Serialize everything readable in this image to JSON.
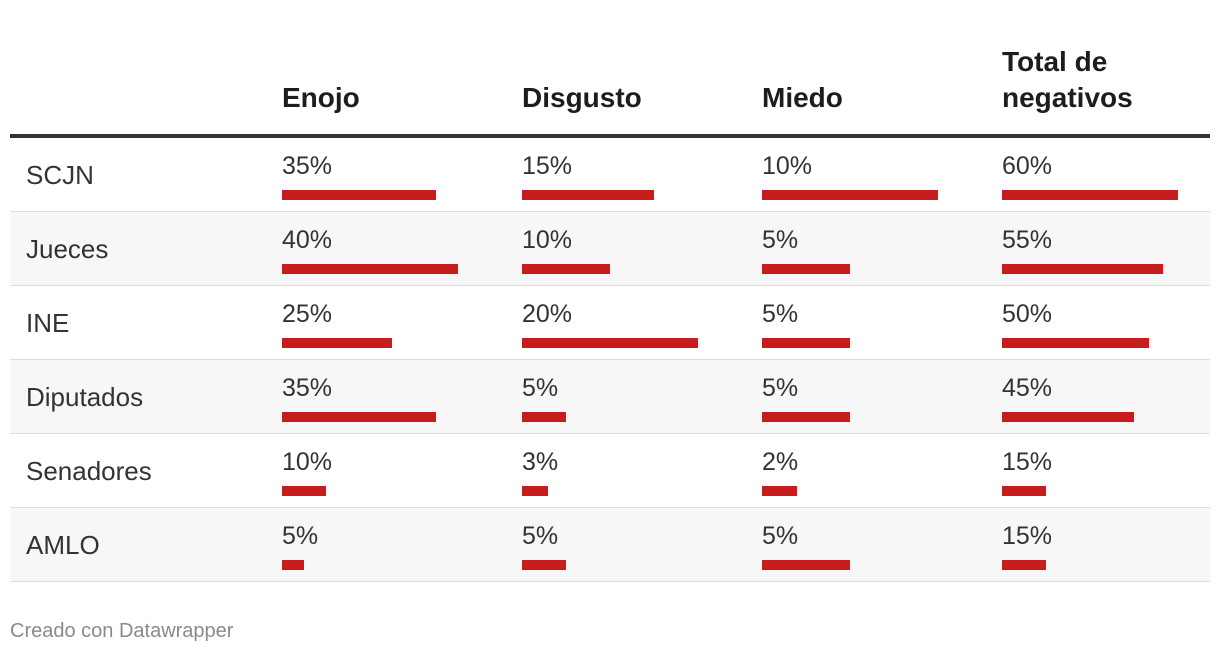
{
  "chart_data": {
    "type": "table",
    "columns": [
      "Enojo",
      "Disgusto",
      "Miedo",
      "Total de negativos"
    ],
    "rows": [
      {
        "label": "SCJN",
        "values": [
          35,
          15,
          10,
          60
        ],
        "display": [
          "35%",
          "15%",
          "10%",
          "60%"
        ]
      },
      {
        "label": "Jueces",
        "values": [
          40,
          10,
          5,
          55
        ],
        "display": [
          "40%",
          "10%",
          "5%",
          "55%"
        ]
      },
      {
        "label": "INE",
        "values": [
          25,
          20,
          5,
          50
        ],
        "display": [
          "25%",
          "20%",
          "5%",
          "50%"
        ]
      },
      {
        "label": "Diputados",
        "values": [
          35,
          5,
          5,
          45
        ],
        "display": [
          "35%",
          "5%",
          "5%",
          "45%"
        ]
      },
      {
        "label": "Senadores",
        "values": [
          10,
          3,
          2,
          15
        ],
        "display": [
          "10%",
          "3%",
          "2%",
          "15%"
        ]
      },
      {
        "label": "AMLO",
        "values": [
          5,
          5,
          5,
          15
        ],
        "display": [
          "5%",
          "5%",
          "5%",
          "15%"
        ]
      }
    ],
    "column_max": [
      40,
      20,
      10,
      60
    ],
    "bar_color": "#c71e1d"
  },
  "footer": {
    "credit": "Creado con Datawrapper"
  }
}
